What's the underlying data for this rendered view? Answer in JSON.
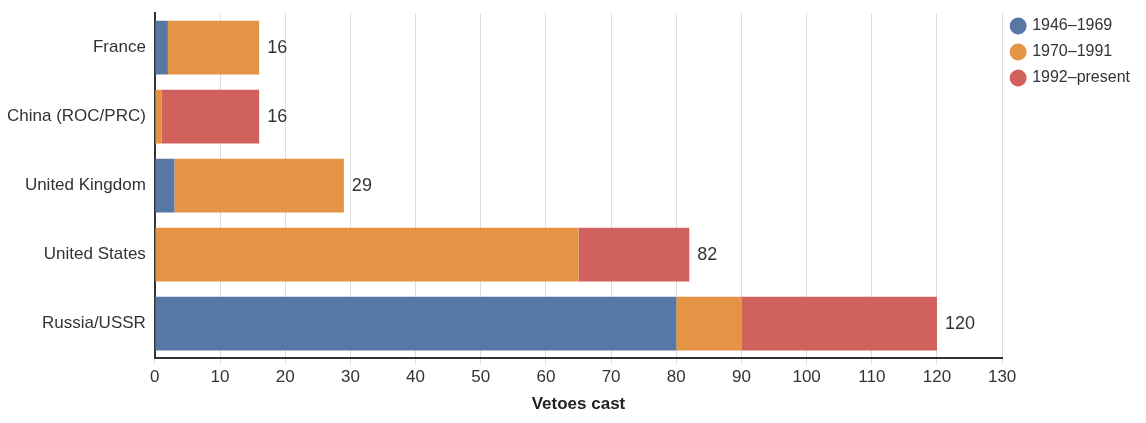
{
  "chart_data": {
    "type": "bar",
    "orientation": "horizontal",
    "stacked": true,
    "categories": [
      "France",
      "China (ROC/PRC)",
      "United Kingdom",
      "United States",
      "Russia/USSR"
    ],
    "series": [
      {
        "name": "1946–1969",
        "color": "#5778a4",
        "values": [
          2,
          0,
          3,
          0,
          80
        ]
      },
      {
        "name": "1970–1991",
        "color": "#e49444",
        "values": [
          14,
          1,
          26,
          65,
          10
        ]
      },
      {
        "name": "1992–present",
        "color": "#d1615d",
        "values": [
          0,
          15,
          0,
          17,
          30
        ]
      }
    ],
    "totals": [
      "16",
      "16",
      "29",
      "82",
      "120"
    ],
    "xlabel": "Vetoes cast",
    "xlim": [
      0,
      130
    ],
    "xticks": [
      0,
      10,
      20,
      30,
      40,
      50,
      60,
      70,
      80,
      90,
      100,
      110,
      120,
      130
    ],
    "grid": "x",
    "legend": "top right"
  }
}
